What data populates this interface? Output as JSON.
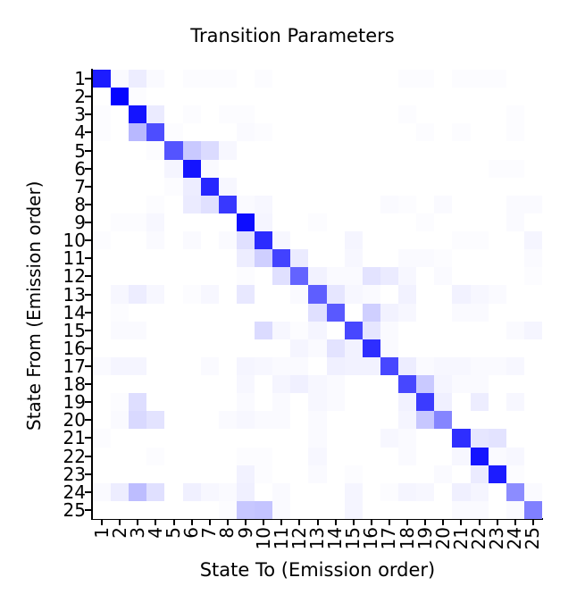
{
  "chart_data": {
    "type": "heatmap",
    "title": "Transition Parameters",
    "xlabel": "State To (Emission order)",
    "ylabel": "State From (Emission order)",
    "x_ticks": [
      "1",
      "2",
      "3",
      "4",
      "5",
      "6",
      "7",
      "8",
      "9",
      "10",
      "11",
      "12",
      "13",
      "14",
      "15",
      "16",
      "17",
      "18",
      "19",
      "20",
      "21",
      "22",
      "23",
      "24",
      "25"
    ],
    "y_ticks": [
      "1",
      "2",
      "3",
      "4",
      "5",
      "6",
      "7",
      "8",
      "9",
      "10",
      "11",
      "12",
      "13",
      "14",
      "15",
      "16",
      "17",
      "18",
      "19",
      "20",
      "21",
      "22",
      "23",
      "24",
      "25"
    ],
    "value_range": [
      0,
      1
    ],
    "colormap": {
      "low": "#ffffff",
      "high": "#0000ff"
    },
    "grid": false,
    "legend": "none",
    "values": [
      [
        0.89,
        0.02,
        0.07,
        0.02,
        0,
        0.01,
        0.01,
        0.01,
        0,
        0.01,
        0,
        0,
        0,
        0,
        0,
        0,
        0,
        0.01,
        0.01,
        0,
        0.01,
        0.01,
        0.01,
        0,
        0
      ],
      [
        0,
        0.98,
        0.01,
        0,
        0,
        0,
        0,
        0,
        0,
        0,
        0,
        0,
        0,
        0,
        0,
        0,
        0,
        0,
        0,
        0,
        0,
        0,
        0,
        0,
        0
      ],
      [
        0.01,
        0,
        0.92,
        0.08,
        0,
        0.01,
        0,
        0.01,
        0.01,
        0,
        0,
        0,
        0,
        0,
        0,
        0,
        0,
        0.01,
        0,
        0,
        0,
        0,
        0,
        0.01,
        0
      ],
      [
        0.01,
        0,
        0.28,
        0.7,
        0.01,
        0,
        0,
        0,
        0.02,
        0.01,
        0,
        0,
        0,
        0,
        0,
        0,
        0,
        0,
        0.01,
        0,
        0.01,
        0,
        0,
        0.01,
        0
      ],
      [
        0,
        0,
        0,
        0.01,
        0.67,
        0.21,
        0.14,
        0.03,
        0,
        0,
        0,
        0,
        0,
        0,
        0,
        0,
        0,
        0,
        0,
        0,
        0,
        0,
        0,
        0,
        0
      ],
      [
        0,
        0,
        0,
        0,
        0.04,
        0.92,
        0.02,
        0,
        0,
        0,
        0,
        0,
        0,
        0,
        0,
        0,
        0,
        0,
        0,
        0,
        0,
        0,
        0.01,
        0.01,
        0
      ],
      [
        0,
        0,
        0,
        0,
        0.01,
        0.07,
        0.85,
        0.03,
        0,
        0,
        0,
        0,
        0,
        0,
        0,
        0,
        0,
        0,
        0,
        0,
        0,
        0,
        0,
        0,
        0
      ],
      [
        0,
        0,
        0,
        0.01,
        0,
        0.08,
        0.12,
        0.78,
        0.02,
        0.03,
        0,
        0,
        0,
        0,
        0,
        0,
        0.02,
        0.01,
        0,
        0.02,
        0,
        0,
        0,
        0.02,
        0.02
      ],
      [
        0,
        0.01,
        0.01,
        0.03,
        0,
        0,
        0,
        0,
        0.95,
        0.04,
        0,
        0,
        0.01,
        0,
        0,
        0,
        0,
        0,
        0.01,
        0,
        0,
        0,
        0,
        0.02,
        0
      ],
      [
        0.01,
        0,
        0,
        0.02,
        0,
        0.02,
        0,
        0.02,
        0.12,
        0.83,
        0.03,
        0,
        0,
        0,
        0.04,
        0,
        0,
        0,
        0,
        0,
        0.01,
        0.01,
        0,
        0,
        0.04
      ],
      [
        0,
        0,
        0,
        0,
        0,
        0,
        0,
        0,
        0.07,
        0.19,
        0.74,
        0.08,
        0,
        0,
        0.03,
        0,
        0,
        0.02,
        0.02,
        0.01,
        0,
        0,
        0,
        0,
        0.02
      ],
      [
        0,
        0,
        0,
        0,
        0,
        0,
        0,
        0,
        0.01,
        0,
        0.12,
        0.61,
        0.05,
        0.02,
        0.02,
        0.11,
        0.08,
        0.03,
        0,
        0.02,
        0,
        0,
        0,
        0,
        0.01
      ],
      [
        0,
        0.03,
        0.07,
        0.03,
        0,
        0.01,
        0.03,
        0,
        0.09,
        0,
        0,
        0.02,
        0.63,
        0.1,
        0.03,
        0.02,
        0,
        0.05,
        0,
        0,
        0.05,
        0.03,
        0.02,
        0,
        0
      ],
      [
        0,
        0.01,
        0,
        0,
        0,
        0,
        0,
        0,
        0,
        0,
        0,
        0,
        0.12,
        0.65,
        0,
        0.19,
        0.05,
        0.03,
        0,
        0,
        0.02,
        0.02,
        0,
        0,
        0
      ],
      [
        0,
        0.02,
        0.02,
        0,
        0,
        0,
        0,
        0,
        0,
        0.14,
        0.03,
        0.01,
        0.04,
        0,
        0.72,
        0.1,
        0.02,
        0,
        0,
        0,
        0,
        0,
        0,
        0.02,
        0.04
      ],
      [
        0,
        0,
        0,
        0,
        0,
        0,
        0,
        0,
        0,
        0,
        0,
        0.04,
        0.02,
        0.11,
        0.05,
        0.82,
        0.02,
        0,
        0,
        0,
        0,
        0,
        0,
        0,
        0
      ],
      [
        0.02,
        0.04,
        0.04,
        0,
        0,
        0,
        0.02,
        0,
        0.04,
        0.03,
        0.02,
        0.02,
        0,
        0.06,
        0.05,
        0.05,
        0.72,
        0.07,
        0.02,
        0.03,
        0.03,
        0.02,
        0.02,
        0.03,
        0
      ],
      [
        0,
        0,
        0,
        0,
        0,
        0,
        0,
        0,
        0.03,
        0,
        0.04,
        0.06,
        0.03,
        0.02,
        0,
        0,
        0,
        0.72,
        0.21,
        0.04,
        0.02,
        0.02,
        0,
        0,
        0
      ],
      [
        0,
        0.01,
        0.13,
        0,
        0,
        0,
        0,
        0,
        0.02,
        0,
        0.02,
        0,
        0.03,
        0.02,
        0,
        0,
        0,
        0.05,
        0.77,
        0.06,
        0,
        0.07,
        0,
        0.03,
        0
      ],
      [
        0,
        0.02,
        0.15,
        0.11,
        0,
        0,
        0,
        0.02,
        0.03,
        0.02,
        0.02,
        0,
        0.02,
        0,
        0,
        0,
        0,
        0.04,
        0.22,
        0.48,
        0,
        0,
        0,
        0,
        0
      ],
      [
        0.01,
        0,
        0,
        0,
        0,
        0,
        0,
        0,
        0,
        0,
        0,
        0,
        0.02,
        0,
        0,
        0,
        0.03,
        0.02,
        0,
        0,
        0.82,
        0.1,
        0.11,
        0,
        0
      ],
      [
        0,
        0,
        0,
        0.01,
        0,
        0,
        0,
        0,
        0.01,
        0.01,
        0,
        0,
        0.03,
        0,
        0,
        0,
        0,
        0.02,
        0,
        0,
        0.03,
        0.92,
        0.02,
        0.03,
        0
      ],
      [
        0,
        0,
        0,
        0,
        0,
        0,
        0,
        0,
        0.05,
        0.01,
        0,
        0,
        0.02,
        0,
        0.01,
        0,
        0,
        0,
        0,
        0.02,
        0,
        0.08,
        0.89,
        0.01,
        0
      ],
      [
        0.02,
        0.07,
        0.26,
        0.12,
        0,
        0.06,
        0.03,
        0.02,
        0.06,
        0,
        0.02,
        0,
        0,
        0,
        0.04,
        0,
        0.01,
        0.04,
        0.03,
        0,
        0.06,
        0.04,
        0,
        0.45,
        0.02
      ],
      [
        0,
        0,
        0,
        0,
        0,
        0,
        0,
        0.01,
        0.22,
        0.23,
        0.02,
        0,
        0,
        0,
        0.04,
        0,
        0,
        0,
        0,
        0,
        0.02,
        0.02,
        0,
        0.02,
        0.5
      ]
    ]
  }
}
